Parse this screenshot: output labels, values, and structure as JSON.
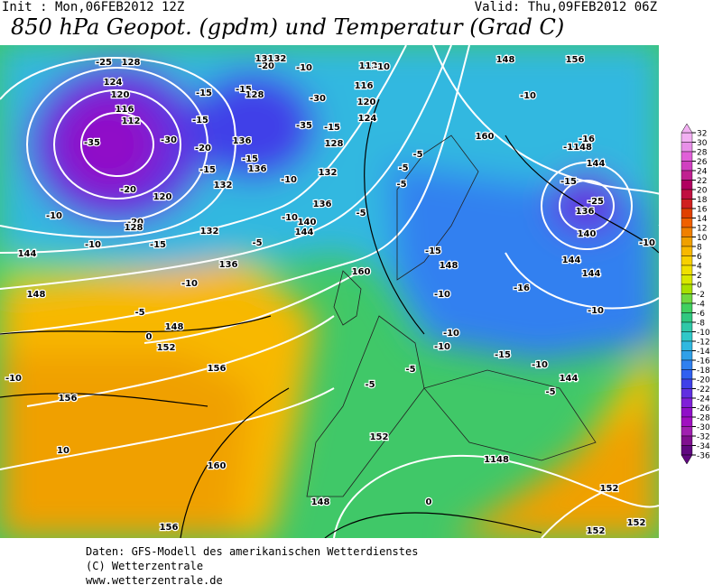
{
  "header": {
    "init": "Init : Mon,06FEB2012 12Z",
    "valid": "Valid: Thu,09FEB2012 06Z",
    "title": "850 hPa Geopot. (gpdm) und Temperatur (Grad C)"
  },
  "map": {
    "labels": [
      "-25",
      "128",
      "124",
      "120",
      "116",
      "112",
      "-35",
      "-30",
      "-20",
      "120",
      "-20",
      "128",
      "-10",
      "-10",
      "-15",
      "132",
      "144",
      "148",
      "136",
      "-10",
      "-5",
      "0",
      "148",
      "152",
      "156",
      "-10",
      "156",
      "10",
      "160",
      "156",
      "148",
      "152",
      "1148",
      "152",
      "152",
      "152",
      "0",
      "-5",
      "-5",
      "160",
      "-15",
      "148",
      "-10",
      "-16",
      "-10",
      "-10",
      "-15",
      "-10",
      "144",
      "-5",
      "144",
      "144",
      "-10",
      "-10",
      "140",
      "136",
      "-25",
      "-15",
      "144",
      "-16",
      "-1148",
      "-10",
      "148",
      "156",
      "160",
      "-5",
      "-5",
      "-5",
      "-5",
      "-10",
      "-15",
      "128",
      "124",
      "120",
      "116",
      "112",
      "-10",
      "-30",
      "-35",
      "136",
      "132",
      "136",
      "140",
      "144",
      "-5",
      "-10",
      "-15",
      "-15",
      "-20",
      "-15",
      "-15",
      "128",
      "-15",
      "136",
      "132",
      "-20",
      "13132",
      "-10"
    ]
  },
  "colorbar": {
    "ticks": [
      32,
      30,
      28,
      26,
      24,
      22,
      20,
      18,
      16,
      14,
      12,
      10,
      8,
      6,
      4,
      2,
      0,
      -2,
      -4,
      -6,
      -8,
      -10,
      -12,
      -14,
      -16,
      -18,
      -20,
      -22,
      -24,
      -26,
      -28,
      -30,
      -32,
      -34,
      -36
    ],
    "colors": [
      "#f2b0f2",
      "#e890e8",
      "#e060d8",
      "#d040c0",
      "#c02090",
      "#b00060",
      "#c01040",
      "#d02020",
      "#e04000",
      "#f06000",
      "#f08000",
      "#f0a000",
      "#f8b800",
      "#f8d000",
      "#f0e000",
      "#d8e800",
      "#a8e000",
      "#70d840",
      "#40d060",
      "#30c880",
      "#30c8a8",
      "#30c8c8",
      "#30b8e0",
      "#30a0e8",
      "#3080f0",
      "#3060f0",
      "#4040e8",
      "#6030e0",
      "#8020d8",
      "#9010c8",
      "#a010c0",
      "#a020b0",
      "#80108f",
      "#600880"
    ]
  },
  "footer": {
    "line1": "Daten: GFS-Modell des amerikanischen Wetterdienstes",
    "line2": "(C) Wetterzentrale",
    "line3": "www.wetterzentrale.de"
  }
}
